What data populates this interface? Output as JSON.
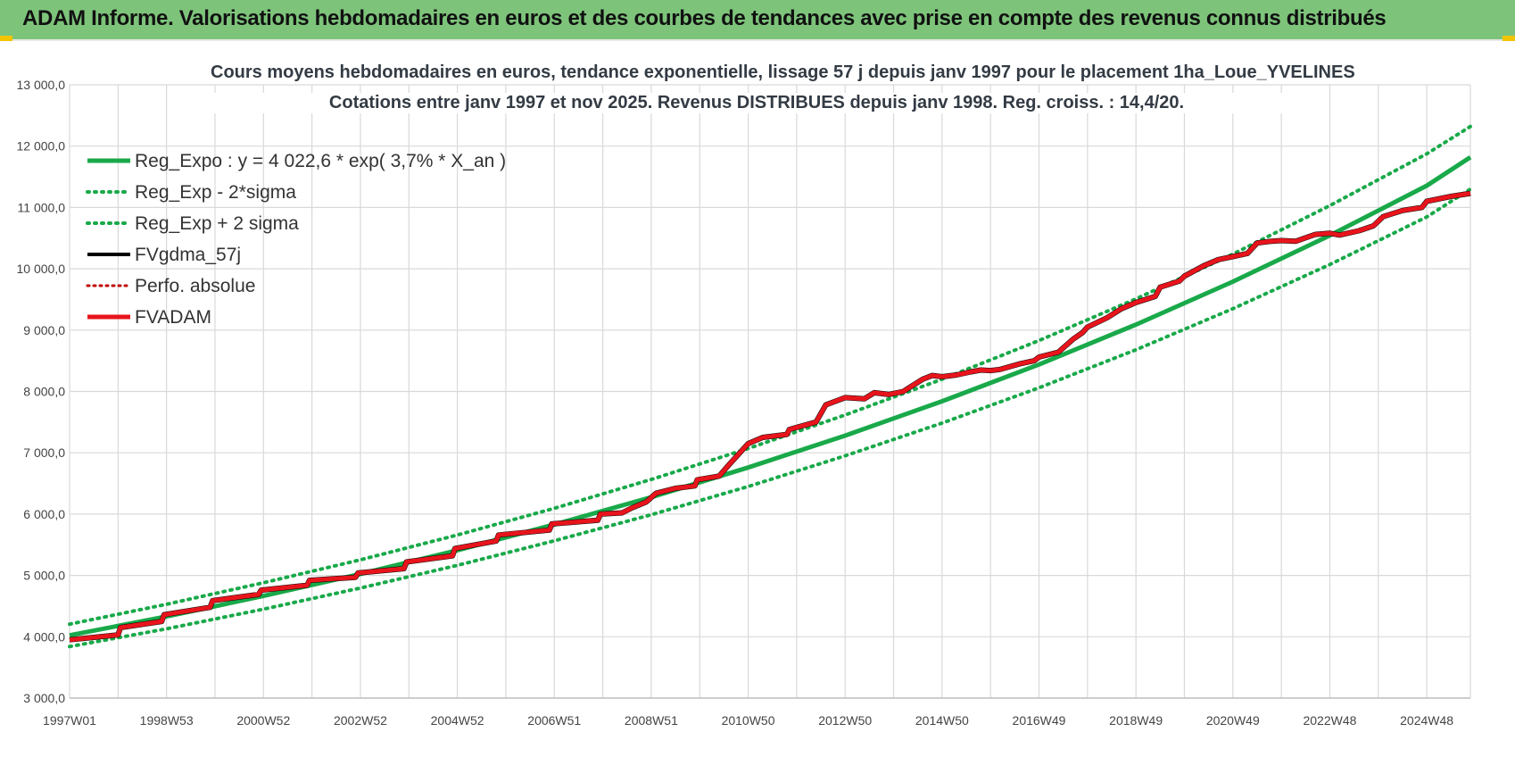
{
  "header": {
    "title": "ADAM Informe. Valorisations hebdomadaires en euros et des courbes de tendances avec prise en compte des revenus connus distribués"
  },
  "colors": {
    "banner": "#7dc47a",
    "reg_green": "#19a94a",
    "fvadam_red": "#e8141c",
    "fvgdma_black": "#000000",
    "perfo_red": "#c00000",
    "grid": "#d9d9d9"
  },
  "chart_data": {
    "type": "line",
    "title": "Cours moyens hebdomadaires en euros, tendance exponentielle, lissage 57 j depuis janv 1997 pour le placement 1ha_Loue_YVELINES",
    "subtitle": "Cotations entre janv 1997 et nov 2025. Revenus DISTRIBUES depuis janv 1998. Reg. croiss. : 14,4/20.",
    "ylim": [
      3000,
      13000
    ],
    "y_ticks": [
      "3 000,0",
      "4 000,0",
      "5 000,0",
      "6 000,0",
      "7 000,0",
      "8 000,0",
      "9 000,0",
      "10 000,0",
      "11 000,0",
      "12 000,0",
      "13 000,0"
    ],
    "y_tick_values": [
      3000,
      4000,
      5000,
      6000,
      7000,
      8000,
      9000,
      10000,
      11000,
      12000,
      13000
    ],
    "x_ticks": [
      "1997W01",
      "1998W53",
      "2000W52",
      "2002W52",
      "2004W52",
      "2006W51",
      "2008W51",
      "2010W50",
      "2012W50",
      "2014W50",
      "2016W49",
      "2018W49",
      "2020W49",
      "2022W48",
      "2024W48"
    ],
    "x_tick_years": [
      1997.0,
      1999.0,
      2001.0,
      2003.0,
      2005.0,
      2007.0,
      2009.0,
      2011.0,
      2013.0,
      2015.0,
      2017.0,
      2019.0,
      2021.0,
      2023.0,
      2025.0
    ],
    "xlim_years": [
      1997.0,
      2025.9
    ],
    "grid": true,
    "legend_position": "top-left",
    "legend": [
      {
        "key": "reg_expo",
        "label": "Reg_Expo : y = 4 022,6 * exp( 3,7% *  X_an )"
      },
      {
        "key": "reg_minus",
        "label": "Reg_Exp - 2*sigma"
      },
      {
        "key": "reg_plus",
        "label": "Reg_Exp + 2 sigma"
      },
      {
        "key": "fvgdma",
        "label": "FVgdma_57j"
      },
      {
        "key": "perfo",
        "label": "Perfo. absolue"
      },
      {
        "key": "fvadam",
        "label": "FVADAM"
      }
    ],
    "series": [
      {
        "name": "Reg_Expo : y = 4 022,6 * exp( 3,7% *  X_an )",
        "years": [
          1997,
          1999,
          2001,
          2003,
          2005,
          2007,
          2009,
          2011,
          2013,
          2015,
          2017,
          2019,
          2021,
          2023,
          2025,
          2025.9
        ],
        "values": [
          4023,
          4330,
          4665,
          5025,
          5410,
          5830,
          6275,
          6760,
          7280,
          7840,
          8440,
          9090,
          9790,
          10545,
          11355,
          11820
        ]
      },
      {
        "name": "Reg_Exp - 2*sigma",
        "years": [
          1997,
          1999,
          2001,
          2003,
          2005,
          2007,
          2009,
          2011,
          2013,
          2015,
          2017,
          2019,
          2021,
          2023,
          2025,
          2025.9
        ],
        "values": [
          3840,
          4130,
          4450,
          4795,
          5165,
          5565,
          5990,
          6450,
          6950,
          7485,
          8060,
          8680,
          9350,
          10070,
          10845,
          11300
        ]
      },
      {
        "name": "Reg_Exp + 2 sigma",
        "years": [
          1997,
          1999,
          2001,
          2003,
          2005,
          2007,
          2009,
          2011,
          2013,
          2015,
          2017,
          2019,
          2021,
          2023,
          2025,
          2025.9
        ],
        "values": [
          4205,
          4530,
          4880,
          5255,
          5660,
          6095,
          6565,
          7070,
          7615,
          8200,
          8830,
          9510,
          10240,
          11030,
          11875,
          12320
        ]
      },
      {
        "name": "FVADAM",
        "years": [
          1997.0,
          1997.5,
          1998.0,
          1998.05,
          1998.9,
          1998.95,
          1999.9,
          1999.95,
          2000.9,
          2000.95,
          2001.9,
          2001.95,
          2002.9,
          2002.95,
          2003.9,
          2003.95,
          2004.9,
          2004.95,
          2005.8,
          2005.85,
          2006.9,
          2006.95,
          2007.9,
          2007.95,
          2008.4,
          2008.6,
          2008.9,
          2009.1,
          2009.5,
          2009.9,
          2009.95,
          2010.4,
          2010.6,
          2011.0,
          2011.3,
          2011.8,
          2011.85,
          2012.4,
          2012.6,
          2013.0,
          2013.4,
          2013.6,
          2013.9,
          2014.2,
          2014.6,
          2014.8,
          2015.0,
          2015.3,
          2015.6,
          2015.8,
          2016.0,
          2016.2,
          2016.6,
          2016.9,
          2017.0,
          2017.4,
          2017.7,
          2017.9,
          2018.0,
          2018.4,
          2018.7,
          2019.0,
          2019.4,
          2019.5,
          2019.9,
          2020.0,
          2020.4,
          2020.7,
          2021.0,
          2021.3,
          2021.5,
          2021.8,
          2022.0,
          2022.3,
          2022.7,
          2023.0,
          2023.2,
          2023.6,
          2023.9,
          2024.1,
          2024.5,
          2024.9,
          2025.0,
          2025.5,
          2025.9
        ],
        "values": [
          3950,
          3990,
          4030,
          4150,
          4250,
          4360,
          4480,
          4590,
          4690,
          4760,
          4840,
          4920,
          4970,
          5040,
          5110,
          5220,
          5320,
          5440,
          5560,
          5660,
          5740,
          5840,
          5900,
          6000,
          6020,
          6100,
          6200,
          6340,
          6420,
          6460,
          6560,
          6620,
          6800,
          7150,
          7250,
          7300,
          7380,
          7500,
          7780,
          7900,
          7880,
          7980,
          7950,
          8000,
          8200,
          8260,
          8240,
          8270,
          8320,
          8350,
          8340,
          8360,
          8450,
          8500,
          8560,
          8640,
          8850,
          8960,
          9050,
          9200,
          9350,
          9450,
          9550,
          9700,
          9800,
          9880,
          10050,
          10150,
          10200,
          10250,
          10420,
          10450,
          10460,
          10450,
          10560,
          10580,
          10550,
          10620,
          10700,
          10850,
          10950,
          11000,
          11100,
          11180,
          11230
        ]
      }
    ]
  }
}
